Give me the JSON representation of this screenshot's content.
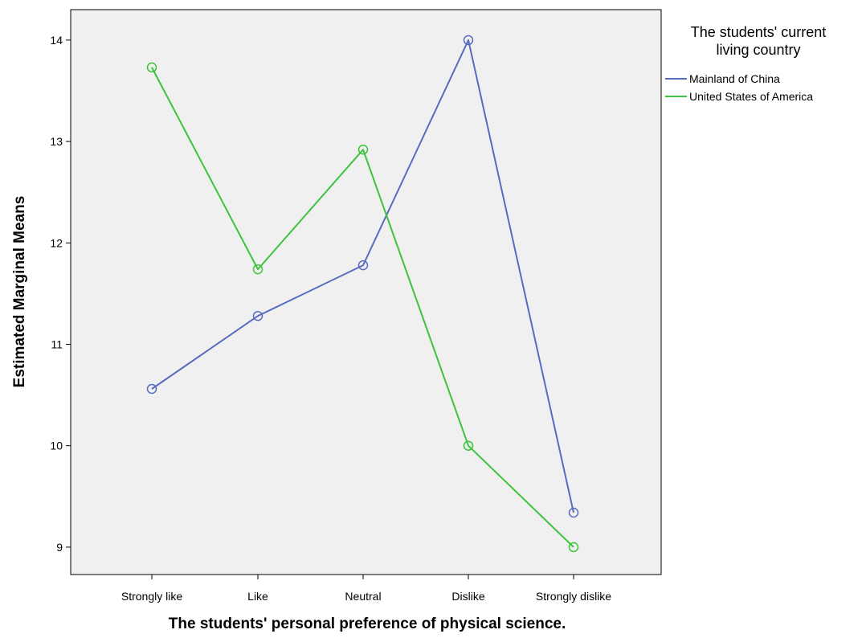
{
  "chart_data": {
    "type": "line",
    "categories": [
      "Strongly like",
      "Like",
      "Neutral",
      "Dislike",
      "Strongly dislike"
    ],
    "series": [
      {
        "name": "Mainland of China",
        "color": "#5a6bbf",
        "values": [
          10.56,
          11.28,
          11.78,
          14.0,
          9.34
        ]
      },
      {
        "name": "United States of America",
        "color": "#3dc33d",
        "values": [
          13.73,
          11.74,
          12.92,
          10.0,
          9.0
        ]
      }
    ],
    "xlabel": "The students' personal preference of physical science.",
    "ylabel": "Estimated Marginal Means",
    "ylim": [
      8.73,
      14.3
    ],
    "yticks": [
      9,
      10,
      11,
      12,
      13,
      14
    ],
    "grid": false,
    "marker": "open-circle",
    "plot_background": "#f0f0f0",
    "legend": {
      "placement": "right",
      "title_lines": [
        "The students' current",
        "living country"
      ]
    }
  }
}
